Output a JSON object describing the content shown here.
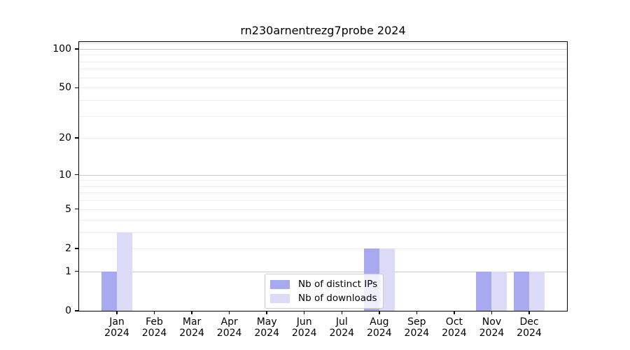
{
  "chart_data": {
    "type": "bar",
    "title": "rn230arnentrezg7probe 2024",
    "categories": [
      "Jan",
      "Feb",
      "Mar",
      "Apr",
      "May",
      "Jun",
      "Jul",
      "Aug",
      "Sep",
      "Oct",
      "Nov",
      "Dec"
    ],
    "category_sublabel": "2024",
    "series": [
      {
        "name": "Nb of distinct IPs",
        "color": "#a9a9f0",
        "values": [
          1,
          0,
          0,
          0,
          0,
          0,
          0,
          2,
          0,
          0,
          1,
          1
        ]
      },
      {
        "name": "Nb of downloads",
        "color": "#dbdbf8",
        "values": [
          3,
          0,
          0,
          0,
          0,
          0,
          0,
          2,
          0,
          0,
          1,
          1
        ]
      }
    ],
    "xlabel": "",
    "ylabel": "",
    "yscale": "log1p",
    "ylim": [
      0,
      113
    ],
    "y_ticks": [
      0,
      1,
      2,
      5,
      10,
      20,
      50,
      100
    ],
    "y_major_gridlines": [
      1,
      10,
      100
    ],
    "y_minor_gridlines": [
      2,
      3,
      4,
      5,
      6,
      7,
      8,
      9,
      20,
      30,
      40,
      50,
      60,
      70,
      80,
      90,
      110
    ],
    "grid": true,
    "legend_position": "lower center"
  },
  "colors": {
    "axis": "#000000",
    "major_grid": "#c9c9c9",
    "minor_grid": "#ededed",
    "background": "#ffffff",
    "legend_border": "#cccccc"
  }
}
